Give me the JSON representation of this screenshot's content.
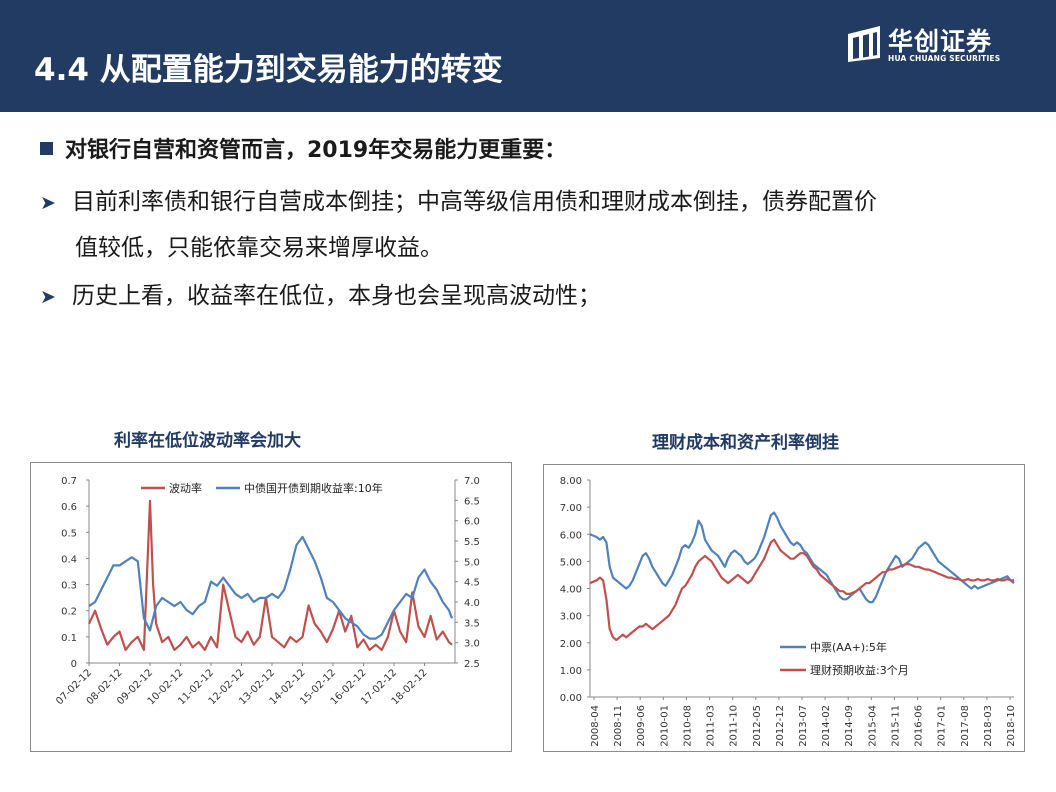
{
  "header": {
    "title": "4.4 从配置能力到交易能力的转变",
    "logo_cn": "华创证券",
    "logo_en": "HUA CHUANG SECURITIES",
    "background": "#213b63"
  },
  "content": {
    "main_bullet": "对银行自营和资管而言，2019年交易能力更重要：",
    "sub_bullets": [
      "目前利率债和银行自营成本倒挂；中高等级信用债和理财成本倒挂，债券配置价",
      "值较低，只能依靠交易来增厚收益。",
      "历史上看，收益率在低位，本身也会呈现高波动性；"
    ]
  },
  "chart_data": [
    {
      "type": "line",
      "title": "利率在低位波动率会加大",
      "x_tick_labels": [
        "07-02-12",
        "08-02-12",
        "09-02-12",
        "10-02-12",
        "11-02-12",
        "12-02-12",
        "13-02-12",
        "14-02-12",
        "15-02-12",
        "16-02-12",
        "17-02-12",
        "18-02-12"
      ],
      "y_left_ticks": [
        "0",
        "0.1",
        "0.2",
        "0.3",
        "0.4",
        "0.5",
        "0.6",
        "0.7"
      ],
      "y_right_ticks": [
        "2.5",
        "3.0",
        "3.5",
        "4.0",
        "4.5",
        "5.0",
        "5.5",
        "6.0",
        "6.5",
        "7.0"
      ],
      "ylim_left": [
        0,
        0.7
      ],
      "ylim_right": [
        2.5,
        7.0
      ],
      "legend_position": "top",
      "series": [
        {
          "name": "波动率",
          "axis": "left",
          "color": "#c0504d",
          "x": [
            2007.1,
            2007.3,
            2007.5,
            2007.7,
            2007.9,
            2008.1,
            2008.3,
            2008.5,
            2008.7,
            2008.9,
            2009.1,
            2009.2,
            2009.3,
            2009.5,
            2009.7,
            2009.9,
            2010.1,
            2010.3,
            2010.5,
            2010.7,
            2010.9,
            2011.1,
            2011.3,
            2011.5,
            2011.7,
            2011.9,
            2012.1,
            2012.3,
            2012.5,
            2012.7,
            2012.9,
            2013.1,
            2013.3,
            2013.5,
            2013.7,
            2013.9,
            2014.1,
            2014.3,
            2014.5,
            2014.7,
            2014.9,
            2015.1,
            2015.3,
            2015.5,
            2015.7,
            2015.9,
            2016.1,
            2016.3,
            2016.5,
            2016.7,
            2016.9,
            2017.1,
            2017.3,
            2017.5,
            2017.7,
            2017.9,
            2018.1,
            2018.3,
            2018.5,
            2018.7,
            2018.9,
            2019.0
          ],
          "y": [
            0.15,
            0.2,
            0.13,
            0.07,
            0.1,
            0.12,
            0.05,
            0.08,
            0.1,
            0.05,
            0.62,
            0.3,
            0.15,
            0.08,
            0.1,
            0.05,
            0.07,
            0.1,
            0.06,
            0.08,
            0.05,
            0.1,
            0.06,
            0.3,
            0.2,
            0.1,
            0.08,
            0.12,
            0.07,
            0.1,
            0.25,
            0.1,
            0.08,
            0.06,
            0.1,
            0.08,
            0.1,
            0.22,
            0.15,
            0.12,
            0.08,
            0.13,
            0.2,
            0.12,
            0.18,
            0.06,
            0.09,
            0.05,
            0.07,
            0.05,
            0.1,
            0.2,
            0.12,
            0.08,
            0.27,
            0.14,
            0.1,
            0.18,
            0.09,
            0.12,
            0.08,
            0.07
          ]
        },
        {
          "name": "中债国开债到期收益率:10年",
          "axis": "right",
          "color": "#4f81bd",
          "x": [
            2007.1,
            2007.3,
            2007.5,
            2007.7,
            2007.9,
            2008.1,
            2008.3,
            2008.5,
            2008.7,
            2008.9,
            2009.1,
            2009.3,
            2009.5,
            2009.7,
            2009.9,
            2010.1,
            2010.3,
            2010.5,
            2010.7,
            2010.9,
            2011.1,
            2011.3,
            2011.5,
            2011.7,
            2011.9,
            2012.1,
            2012.3,
            2012.5,
            2012.7,
            2012.9,
            2013.1,
            2013.3,
            2013.5,
            2013.7,
            2013.9,
            2014.1,
            2014.3,
            2014.5,
            2014.7,
            2014.9,
            2015.1,
            2015.3,
            2015.5,
            2015.7,
            2015.9,
            2016.1,
            2016.3,
            2016.5,
            2016.7,
            2016.9,
            2017.1,
            2017.3,
            2017.5,
            2017.7,
            2017.9,
            2018.1,
            2018.3,
            2018.5,
            2018.7,
            2018.9,
            2019.0
          ],
          "y": [
            3.9,
            4.0,
            4.3,
            4.6,
            4.9,
            4.9,
            5.0,
            5.1,
            5.0,
            3.6,
            3.3,
            3.9,
            4.1,
            4.0,
            3.9,
            4.0,
            3.8,
            3.7,
            3.9,
            4.0,
            4.5,
            4.4,
            4.6,
            4.4,
            4.2,
            4.1,
            4.2,
            4.0,
            4.1,
            4.1,
            4.2,
            4.1,
            4.3,
            4.8,
            5.4,
            5.6,
            5.3,
            5.0,
            4.6,
            4.1,
            4.0,
            3.8,
            3.6,
            3.5,
            3.4,
            3.2,
            3.1,
            3.1,
            3.2,
            3.5,
            3.8,
            4.0,
            4.2,
            4.1,
            4.6,
            4.8,
            4.5,
            4.3,
            4.0,
            3.8,
            3.6
          ]
        }
      ]
    },
    {
      "type": "line",
      "title": "理财成本和资产利率倒挂",
      "x_tick_labels": [
        "2008-04",
        "2008-11",
        "2009-06",
        "2010-01",
        "2010-08",
        "2011-03",
        "2011-10",
        "2012-05",
        "2012-12",
        "2013-07",
        "2014-02",
        "2014-09",
        "2015-04",
        "2015-11",
        "2016-06",
        "2017-01",
        "2017-08",
        "2018-03",
        "2018-10"
      ],
      "y_ticks": [
        "0.00",
        "1.00",
        "2.00",
        "3.00",
        "4.00",
        "5.00",
        "6.00",
        "7.00",
        "8.00"
      ],
      "ylim": [
        0,
        8
      ],
      "legend_position": "bottom-center",
      "series": [
        {
          "name": "中票(AA+):5年",
          "color": "#4f81bd",
          "x": [
            0,
            1,
            2,
            3,
            4,
            5,
            6,
            7,
            8,
            9,
            10,
            11,
            12,
            13,
            14,
            15,
            16,
            17,
            18,
            19,
            20,
            21,
            22,
            23,
            24,
            25,
            26,
            27,
            28,
            29,
            30,
            31,
            32,
            33,
            34,
            35,
            36,
            37,
            38,
            39,
            40,
            41,
            42,
            43,
            44,
            45,
            46,
            47,
            48,
            49,
            50,
            51,
            52,
            53,
            54,
            55,
            56,
            57,
            58,
            59,
            60,
            61,
            62,
            63,
            64,
            65,
            66,
            67,
            68,
            69,
            70,
            71,
            72,
            73,
            74,
            75,
            76,
            77,
            78,
            79,
            80,
            81,
            82,
            83,
            84,
            85,
            86,
            87,
            88,
            89,
            90,
            91,
            92,
            93,
            94,
            95,
            96,
            97,
            98,
            99,
            100,
            101,
            102,
            103,
            104,
            105,
            106,
            107,
            108,
            109,
            110,
            111,
            112,
            113,
            114,
            115,
            116,
            117,
            118,
            119,
            120,
            121,
            122,
            123,
            124,
            125,
            126,
            127,
            128,
            129
          ],
          "y": [
            6.0,
            5.95,
            5.9,
            5.8,
            5.9,
            5.7,
            4.8,
            4.4,
            4.3,
            4.2,
            4.1,
            4.0,
            4.1,
            4.3,
            4.6,
            4.9,
            5.2,
            5.3,
            5.1,
            4.8,
            4.6,
            4.4,
            4.2,
            4.1,
            4.3,
            4.5,
            4.8,
            5.1,
            5.5,
            5.6,
            5.5,
            5.7,
            6.0,
            6.5,
            6.3,
            5.8,
            5.6,
            5.4,
            5.3,
            5.2,
            5.0,
            4.8,
            5.1,
            5.3,
            5.4,
            5.3,
            5.2,
            5.0,
            4.9,
            5.0,
            5.1,
            5.3,
            5.6,
            5.9,
            6.3,
            6.7,
            6.8,
            6.6,
            6.3,
            6.1,
            5.9,
            5.7,
            5.6,
            5.7,
            5.6,
            5.4,
            5.3,
            5.1,
            4.9,
            4.8,
            4.7,
            4.6,
            4.5,
            4.3,
            4.1,
            3.9,
            3.7,
            3.6,
            3.6,
            3.7,
            3.8,
            3.9,
            4.0,
            3.8,
            3.6,
            3.5,
            3.5,
            3.7,
            4.0,
            4.3,
            4.6,
            4.8,
            5.0,
            5.2,
            5.1,
            4.8,
            4.9,
            5.0,
            5.1,
            5.3,
            5.5,
            5.6,
            5.7,
            5.6,
            5.4,
            5.2,
            5.0,
            4.9,
            4.8,
            4.7,
            4.6,
            4.5,
            4.4,
            4.3,
            4.2,
            4.1,
            4.0,
            4.1,
            4.0,
            4.05,
            4.1,
            4.15,
            4.2,
            4.25,
            4.3,
            4.35,
            4.4,
            4.45,
            4.3,
            4.2
          ]
        },
        {
          "name": "理财预期收益:3个月",
          "color": "#c0504d",
          "x": [
            0,
            1,
            2,
            3,
            4,
            5,
            6,
            7,
            8,
            9,
            10,
            11,
            12,
            13,
            14,
            15,
            16,
            17,
            18,
            19,
            20,
            21,
            22,
            23,
            24,
            25,
            26,
            27,
            28,
            29,
            30,
            31,
            32,
            33,
            34,
            35,
            36,
            37,
            38,
            39,
            40,
            41,
            42,
            43,
            44,
            45,
            46,
            47,
            48,
            49,
            50,
            51,
            52,
            53,
            54,
            55,
            56,
            57,
            58,
            59,
            60,
            61,
            62,
            63,
            64,
            65,
            66,
            67,
            68,
            69,
            70,
            71,
            72,
            73,
            74,
            75,
            76,
            77,
            78,
            79,
            80,
            81,
            82,
            83,
            84,
            85,
            86,
            87,
            88,
            89,
            90,
            91,
            92,
            93,
            94,
            95,
            96,
            97,
            98,
            99,
            100,
            101,
            102,
            103,
            104,
            105,
            106,
            107,
            108,
            109,
            110,
            111,
            112,
            113,
            114,
            115,
            116,
            117,
            118,
            119,
            120,
            121,
            122,
            123,
            124,
            125,
            126,
            127,
            128,
            129
          ],
          "y": [
            4.2,
            4.25,
            4.3,
            4.4,
            4.3,
            3.6,
            2.5,
            2.2,
            2.1,
            2.2,
            2.3,
            2.2,
            2.3,
            2.4,
            2.5,
            2.6,
            2.6,
            2.7,
            2.6,
            2.5,
            2.6,
            2.7,
            2.8,
            2.9,
            3.0,
            3.2,
            3.4,
            3.7,
            4.0,
            4.1,
            4.3,
            4.5,
            4.8,
            5.0,
            5.1,
            5.2,
            5.1,
            5.0,
            4.8,
            4.6,
            4.4,
            4.3,
            4.2,
            4.3,
            4.4,
            4.5,
            4.4,
            4.3,
            4.2,
            4.3,
            4.5,
            4.7,
            4.9,
            5.1,
            5.4,
            5.7,
            5.8,
            5.6,
            5.4,
            5.3,
            5.2,
            5.1,
            5.1,
            5.2,
            5.3,
            5.3,
            5.2,
            5.0,
            4.8,
            4.7,
            4.5,
            4.4,
            4.3,
            4.2,
            4.1,
            4.0,
            3.9,
            3.9,
            3.8,
            3.8,
            3.85,
            3.9,
            4.0,
            4.1,
            4.2,
            4.2,
            4.3,
            4.4,
            4.5,
            4.6,
            4.6,
            4.7,
            4.7,
            4.75,
            4.8,
            4.85,
            4.9,
            4.9,
            4.85,
            4.8,
            4.8,
            4.75,
            4.7,
            4.7,
            4.65,
            4.6,
            4.55,
            4.5,
            4.45,
            4.4,
            4.4,
            4.35,
            4.35,
            4.3,
            4.3,
            4.35,
            4.3,
            4.3,
            4.35,
            4.3,
            4.3,
            4.35,
            4.3,
            4.3,
            4.35,
            4.3,
            4.3,
            4.35,
            4.3,
            4.3
          ]
        }
      ]
    }
  ]
}
